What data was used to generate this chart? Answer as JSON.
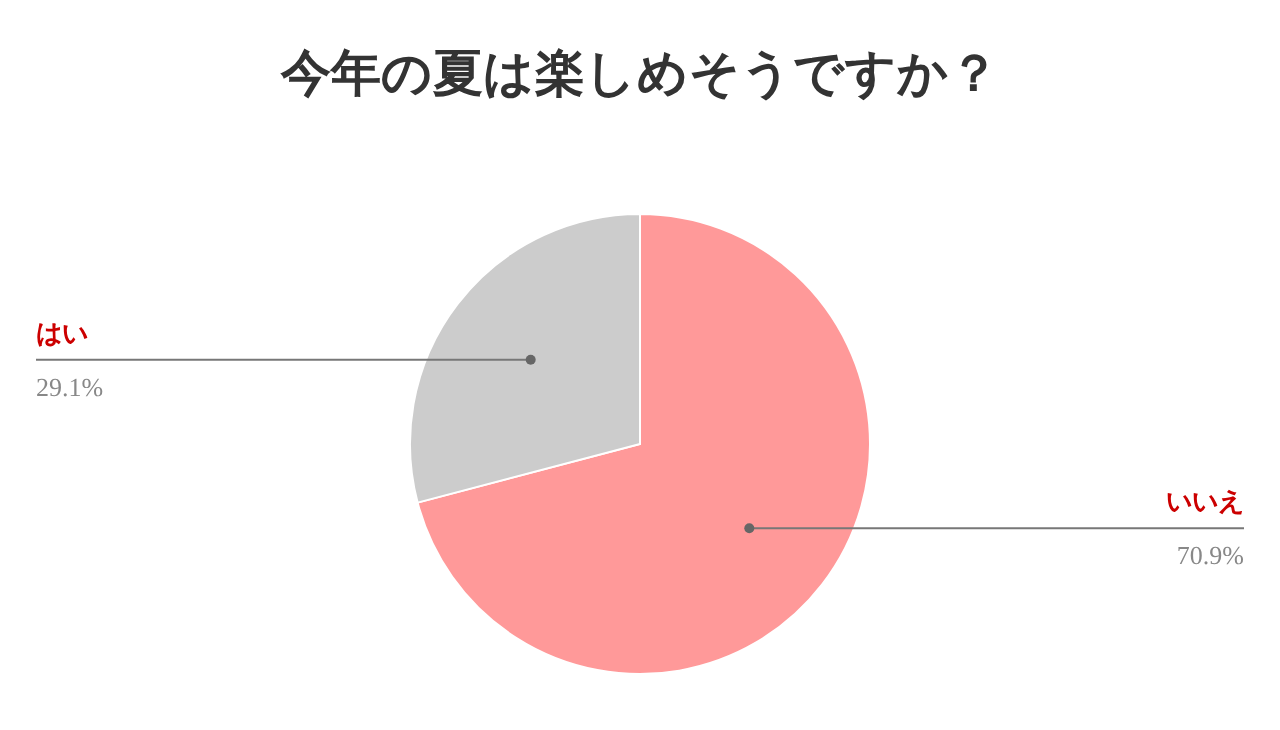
{
  "chart_data": {
    "type": "pie",
    "title": "今年の夏は楽しめそうですか？",
    "categories": [
      "いいえ",
      "はい"
    ],
    "values": [
      70.9,
      29.1
    ],
    "colors": [
      "#ff9999",
      "#cccccc"
    ],
    "value_labels": [
      "70.9%",
      "29.1%"
    ]
  }
}
